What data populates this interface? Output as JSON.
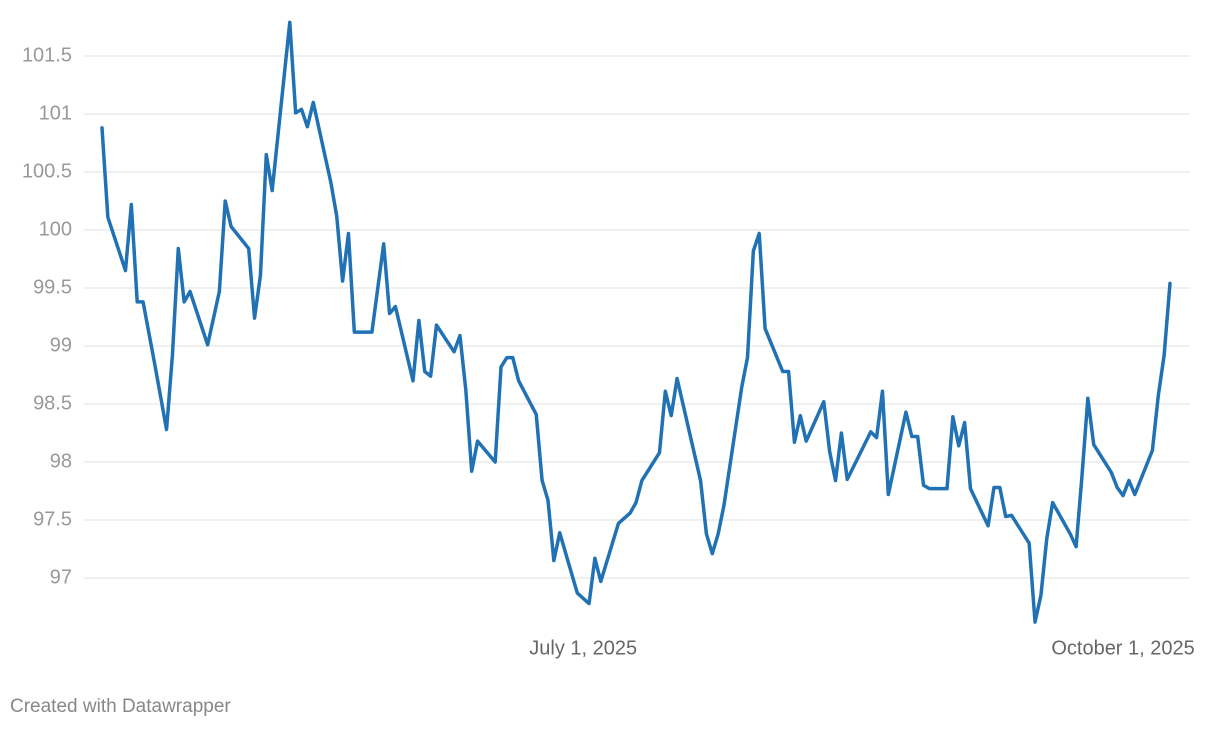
{
  "chart_data": {
    "type": "line",
    "x": [
      "2025-04-10",
      "2025-04-11",
      "2025-04-14",
      "2025-04-15",
      "2025-04-16",
      "2025-04-17",
      "2025-04-19",
      "2025-04-21",
      "2025-04-22",
      "2025-04-23",
      "2025-04-24",
      "2025-04-25",
      "2025-04-28",
      "2025-04-30",
      "2025-05-01",
      "2025-05-02",
      "2025-05-05",
      "2025-05-06",
      "2025-05-07",
      "2025-05-08",
      "2025-05-09",
      "2025-05-12",
      "2025-05-13",
      "2025-05-14",
      "2025-05-15",
      "2025-05-16",
      "2025-05-19",
      "2025-05-20",
      "2025-05-21",
      "2025-05-22",
      "2025-05-23",
      "2025-05-26",
      "2025-05-28",
      "2025-05-29",
      "2025-05-30",
      "2025-06-02",
      "2025-06-03",
      "2025-06-04",
      "2025-06-05",
      "2025-06-06",
      "2025-06-09",
      "2025-06-10",
      "2025-06-11",
      "2025-06-12",
      "2025-06-13",
      "2025-06-16",
      "2025-06-17",
      "2025-06-18",
      "2025-06-19",
      "2025-06-20",
      "2025-06-23",
      "2025-06-24",
      "2025-06-25",
      "2025-06-26",
      "2025-06-27",
      "2025-06-30",
      "2025-07-02",
      "2025-07-03",
      "2025-07-04",
      "2025-07-07",
      "2025-07-09",
      "2025-07-10",
      "2025-07-11",
      "2025-07-14",
      "2025-07-15",
      "2025-07-16",
      "2025-07-17",
      "2025-07-21",
      "2025-07-22",
      "2025-07-23",
      "2025-07-24",
      "2025-07-25",
      "2025-07-28",
      "2025-07-29",
      "2025-07-30",
      "2025-07-31",
      "2025-08-01",
      "2025-08-04",
      "2025-08-05",
      "2025-08-06",
      "2025-08-07",
      "2025-08-08",
      "2025-08-11",
      "2025-08-12",
      "2025-08-13",
      "2025-08-14",
      "2025-08-15",
      "2025-08-19",
      "2025-08-20",
      "2025-08-21",
      "2025-08-22",
      "2025-08-25",
      "2025-08-26",
      "2025-08-27",
      "2025-08-28",
      "2025-08-29",
      "2025-09-01",
      "2025-09-02",
      "2025-09-03",
      "2025-09-04",
      "2025-09-05",
      "2025-09-08",
      "2025-09-09",
      "2025-09-10",
      "2025-09-11",
      "2025-09-12",
      "2025-09-15",
      "2025-09-16",
      "2025-09-17",
      "2025-09-18",
      "2025-09-19",
      "2025-09-22",
      "2025-09-23",
      "2025-09-24",
      "2025-09-25",
      "2025-09-26",
      "2025-09-29",
      "2025-09-30",
      "2025-10-01",
      "2025-10-02",
      "2025-10-03",
      "2025-10-06",
      "2025-10-07",
      "2025-10-08",
      "2025-10-09"
    ],
    "series": [
      {
        "color": "#2171b5",
        "values": [
          100.88,
          100.11,
          99.65,
          100.22,
          99.38,
          99.38,
          98.84,
          98.28,
          98.92,
          99.84,
          99.38,
          99.47,
          99.01,
          99.47,
          100.25,
          100.03,
          99.84,
          99.24,
          99.61,
          100.65,
          100.34,
          101.79,
          101.01,
          101.04,
          100.89,
          101.1,
          100.41,
          100.12,
          99.56,
          99.97,
          99.12,
          99.12,
          99.88,
          99.28,
          99.34,
          98.7,
          99.22,
          98.78,
          98.74,
          99.18,
          98.95,
          99.09,
          98.62,
          97.92,
          98.18,
          98.0,
          98.82,
          98.9,
          98.9,
          98.7,
          98.41,
          97.84,
          97.67,
          97.15,
          97.39,
          96.87,
          96.78,
          97.17,
          96.97,
          97.47,
          97.56,
          97.65,
          97.84,
          98.08,
          98.61,
          98.4,
          98.72,
          97.84,
          97.38,
          97.21,
          97.38,
          97.63,
          98.64,
          98.9,
          99.82,
          99.97,
          99.15,
          98.78,
          98.78,
          98.17,
          98.4,
          98.18,
          98.52,
          98.09,
          97.84,
          98.25,
          97.85,
          98.26,
          98.21,
          98.61,
          97.72,
          98.43,
          98.22,
          98.22,
          97.8,
          97.77,
          97.77,
          98.39,
          98.14,
          98.34,
          97.77,
          97.45,
          97.78,
          97.78,
          97.53,
          97.54,
          97.3,
          96.62,
          96.85,
          97.34,
          97.65,
          97.38,
          97.27,
          97.88,
          98.55,
          98.15,
          97.91,
          97.78,
          97.71,
          97.84,
          97.72,
          98.1,
          98.57,
          98.92,
          99.54
        ]
      }
    ],
    "xlim": [
      "2025-04-10",
      "2025-10-09"
    ],
    "xticks": [
      {
        "value": "2025-07-01",
        "label": "July 1, 2025"
      },
      {
        "value": "2025-10-01",
        "label": "October 1, 2025"
      }
    ],
    "ylim": [
      96.6,
      101.8
    ],
    "yticks": [
      97,
      97.5,
      98,
      98.5,
      99,
      99.5,
      100,
      100.5,
      101,
      101.5
    ],
    "grid": true
  },
  "credit": "Created with Datawrapper"
}
